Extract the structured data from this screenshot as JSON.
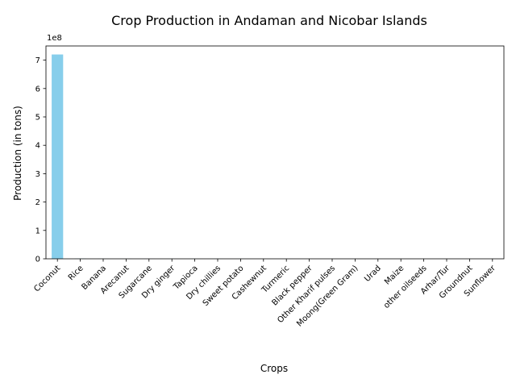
{
  "chart_data": {
    "type": "bar",
    "title": "Crop Production in Andaman and Nicobar Islands",
    "xlabel": "Crops",
    "ylabel": "Production (in tons)",
    "y_offset_label": "1e8",
    "y_scale": 100000000,
    "ylim": [
      0,
      7.5
    ],
    "yticks": [
      "0",
      "1",
      "2",
      "3",
      "4",
      "5",
      "6",
      "7"
    ],
    "bar_color": "#87ceeb",
    "categories": [
      "Coconut",
      "Rice",
      "Banana",
      "Arecanut",
      "Sugarcane",
      "Dry ginger",
      "Tapioca",
      "Dry chillies",
      "Sweet potato",
      "Cashewnut",
      "Turmeric",
      "Black pepper",
      "Other Kharif pulses",
      "Moong(Green Gram)",
      "Urad",
      "Maize",
      "other oilseeds",
      "Arhar/Tur",
      "Groundnut",
      "Sunflower"
    ],
    "values": [
      7.2,
      0.008,
      0.004,
      0.003,
      0.002,
      0.001,
      0.001,
      0.0005,
      0.0005,
      0.0004,
      0.0003,
      0.0003,
      0.0002,
      0.0001,
      0.0001,
      0.0001,
      5e-05,
      5e-05,
      3e-05,
      1e-05
    ]
  }
}
